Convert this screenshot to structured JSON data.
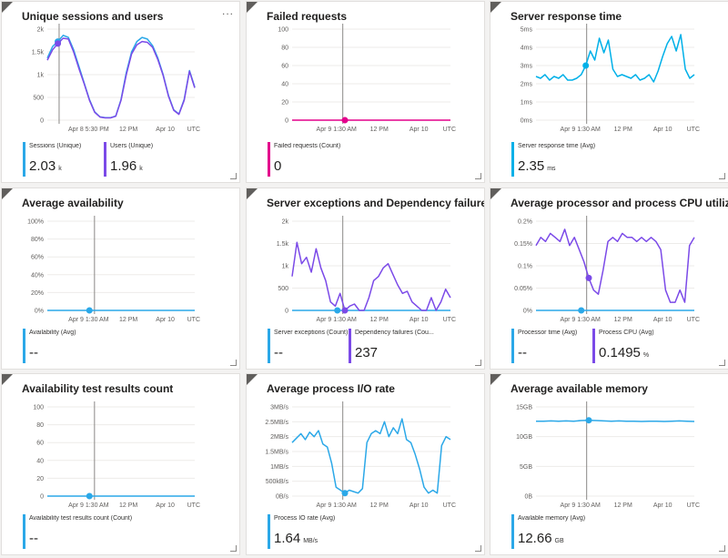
{
  "tiles": [
    {
      "id": "sessions",
      "title": "Unique sessions and users",
      "more": "...",
      "chart_data": {
        "type": "line",
        "ylabels": [
          "2k",
          "1.5k",
          "1k",
          "500",
          "0"
        ],
        "xlabels": [
          "Apr 8 5:30 PM",
          "12 PM",
          "Apr 10",
          "UTC"
        ],
        "ylim": [
          0,
          2200
        ],
        "cursor_x": 0.08,
        "series": [
          {
            "name": "Sessions (Unique)",
            "color": "#2ba8e8",
            "values": [
              1500,
              1780,
              1900,
              2050,
              2000,
              1700,
              1300,
              900,
              500,
              200,
              80,
              60,
              60,
              100,
              500,
              1150,
              1650,
              1900,
              2000,
              1960,
              1800,
              1500,
              1100,
              600,
              250,
              150,
              500,
              1200,
              800
            ]
          },
          {
            "name": "Users (Unique)",
            "color": "#7b4ae8",
            "values": [
              1450,
              1700,
              1850,
              1980,
              1960,
              1650,
              1250,
              880,
              480,
              190,
              75,
              55,
              55,
              95,
              480,
              1100,
              1600,
              1820,
              1900,
              1880,
              1760,
              1460,
              1080,
              580,
              240,
              140,
              480,
              1180,
              780
            ]
          }
        ]
      },
      "legend": [
        {
          "label": "Sessions (Unique)",
          "value": "2.03",
          "unit": "k",
          "color": "#2ba8e8"
        },
        {
          "label": "Users (Unique)",
          "value": "1.96",
          "unit": "k",
          "color": "#7b4ae8"
        }
      ]
    },
    {
      "id": "failed",
      "title": "Failed requests",
      "chart_data": {
        "type": "line",
        "ylabels": [
          "100",
          "80",
          "60",
          "40",
          "20",
          "0"
        ],
        "xlabels": [
          "Apr 9 1:30 AM",
          "12 PM",
          "Apr 10",
          "UTC"
        ],
        "ylim": [
          0,
          100
        ],
        "cursor_x": 0.32,
        "series": [
          {
            "name": "Failed requests (Count)",
            "color": "#e3008c",
            "values": [
              0,
              0,
              0,
              0,
              0,
              0,
              0,
              0,
              0,
              0
            ]
          }
        ]
      },
      "legend": [
        {
          "label": "Failed requests (Count)",
          "value": "0",
          "unit": "",
          "color": "#e3008c"
        }
      ]
    },
    {
      "id": "response",
      "title": "Server response time",
      "chart_data": {
        "type": "line",
        "ylabels": [
          "5ms",
          "4ms",
          "3ms",
          "2ms",
          "1ms",
          "0ms"
        ],
        "xlabels": [
          "Apr 9 1:30 AM",
          "12 PM",
          "Apr 10",
          "UTC"
        ],
        "ylim": [
          0,
          5
        ],
        "cursor_x": 0.32,
        "series": [
          {
            "name": "Server response time (Avg)",
            "color": "#00b0e8",
            "values": [
              2.4,
              2.3,
              2.5,
              2.2,
              2.4,
              2.3,
              2.5,
              2.2,
              2.2,
              2.3,
              2.5,
              3.0,
              3.8,
              3.3,
              4.5,
              3.7,
              4.4,
              2.8,
              2.4,
              2.5,
              2.4,
              2.3,
              2.5,
              2.2,
              2.3,
              2.5,
              2.1,
              2.7,
              3.5,
              4.2,
              4.6,
              3.8,
              4.7,
              2.8,
              2.3,
              2.5
            ]
          }
        ]
      },
      "legend": [
        {
          "label": "Server response time (Avg)",
          "value": "2.35",
          "unit": "ms",
          "color": "#00b0e8"
        }
      ]
    },
    {
      "id": "availability",
      "title": "Average availability",
      "chart_data": {
        "type": "line",
        "ylabels": [
          "100%",
          "80%",
          "60%",
          "40%",
          "20%",
          "0%"
        ],
        "xlabels": [
          "Apr 9 1:30 AM",
          "12 PM",
          "Apr 10",
          "UTC"
        ],
        "ylim": [
          0,
          100
        ],
        "cursor_x": 0.32,
        "series": [
          {
            "name": "Availability (Avg)",
            "color": "#2ba8e8",
            "values": [
              0,
              0,
              0,
              0,
              0,
              0,
              0,
              0
            ]
          }
        ]
      },
      "legend": [
        {
          "label": "Availability (Avg)",
          "value": "--",
          "unit": "",
          "color": "#2ba8e8"
        }
      ]
    },
    {
      "id": "exceptions",
      "title": "Server exceptions and Dependency failures",
      "chart_data": {
        "type": "line",
        "ylabels": [
          "2k",
          "1.5k",
          "1k",
          "500",
          "0"
        ],
        "xlabels": [
          "Apr 9 1:30 AM",
          "12 PM",
          "Apr 10",
          "UTC"
        ],
        "ylim": [
          0,
          2100
        ],
        "cursor_x": 0.32,
        "series": [
          {
            "name": "Server exceptions (Count)",
            "color": "#2ba8e8",
            "values": [
              0,
              0,
              0,
              0,
              0,
              0,
              0,
              0
            ]
          },
          {
            "name": "Dependency failures (Count)",
            "color": "#7b4ae8",
            "values": [
              800,
              1600,
              1100,
              1250,
              900,
              1450,
              1000,
              700,
              200,
              100,
              400,
              0,
              100,
              150,
              0,
              0,
              300,
              700,
              800,
              1000,
              1100,
              850,
              600,
              400,
              450,
              200,
              100,
              0,
              0,
              300,
              0,
              200,
              500,
              300
            ]
          }
        ]
      },
      "legend": [
        {
          "label": "Server exceptions (Count)",
          "value": "--",
          "unit": "",
          "color": "#2ba8e8"
        },
        {
          "label": "Dependency failures (Cou...",
          "value": "237",
          "unit": "",
          "color": "#7b4ae8"
        }
      ]
    },
    {
      "id": "cpu",
      "title": "Average processor and process CPU utilization",
      "chart_data": {
        "type": "line",
        "ylabels": [
          "0.2%",
          "0.15%",
          "0.1%",
          "0.05%",
          "0%"
        ],
        "xlabels": [
          "Apr 9 1:30 AM",
          "12 PM",
          "Apr 10",
          "UTC"
        ],
        "ylim": [
          0,
          0.22
        ],
        "cursor_x": 0.32,
        "series": [
          {
            "name": "Processor time (Avg)",
            "color": "#2ba8e8",
            "values": [
              0,
              0,
              0,
              0,
              0,
              0,
              0,
              0
            ]
          },
          {
            "name": "Process CPU (Avg)",
            "color": "#7b4ae8",
            "values": [
              0.16,
              0.18,
              0.17,
              0.19,
              0.18,
              0.17,
              0.2,
              0.16,
              0.18,
              0.15,
              0.12,
              0.08,
              0.05,
              0.04,
              0.1,
              0.17,
              0.18,
              0.17,
              0.19,
              0.18,
              0.18,
              0.17,
              0.18,
              0.17,
              0.18,
              0.17,
              0.15,
              0.05,
              0.02,
              0.02,
              0.05,
              0.02,
              0.16,
              0.18
            ]
          }
        ]
      },
      "legend": [
        {
          "label": "Processor time (Avg)",
          "value": "--",
          "unit": "",
          "color": "#2ba8e8"
        },
        {
          "label": "Process CPU (Avg)",
          "value": "0.1495",
          "unit": "%",
          "color": "#7b4ae8"
        }
      ]
    },
    {
      "id": "availtest",
      "title": "Availability test results count",
      "chart_data": {
        "type": "line",
        "ylabels": [
          "100",
          "80",
          "60",
          "40",
          "20",
          "0"
        ],
        "xlabels": [
          "Apr 9 1:30 AM",
          "12 PM",
          "Apr 10",
          "UTC"
        ],
        "ylim": [
          0,
          100
        ],
        "cursor_x": 0.32,
        "series": [
          {
            "name": "Availability test results count (Count)",
            "color": "#2ba8e8",
            "values": [
              0,
              0,
              0,
              0,
              0,
              0,
              0,
              0
            ]
          }
        ]
      },
      "legend": [
        {
          "label": "Availability test results count (Count)",
          "value": "--",
          "unit": "",
          "color": "#2ba8e8"
        }
      ]
    },
    {
      "id": "io",
      "title": "Average process I/O rate",
      "chart_data": {
        "type": "line",
        "ylabels": [
          "3MB/s",
          "2.5MB/s",
          "2MB/s",
          "1.5MB/s",
          "1MB/s",
          "500kB/s",
          "0B/s"
        ],
        "xlabels": [
          "Apr 9 1:30 AM",
          "12 PM",
          "Apr 10",
          "UTC"
        ],
        "ylim": [
          0,
          3000
        ],
        "cursor_x": 0.32,
        "series": [
          {
            "name": "Process IO rate (Avg)",
            "color": "#2ba8e8",
            "values": [
              1800,
              1950,
              2100,
              1900,
              2150,
              2000,
              2200,
              1750,
              1650,
              1100,
              300,
              200,
              100,
              200,
              150,
              100,
              250,
              1800,
              2100,
              2200,
              2100,
              2500,
              2000,
              2300,
              2100,
              2600,
              1900,
              1800,
              1400,
              900,
              300,
              100,
              200,
              100,
              1700,
              2000,
              1900
            ]
          }
        ]
      },
      "legend": [
        {
          "label": "Process IO rate (Avg)",
          "value": "1.64",
          "unit": "MB/s",
          "color": "#2ba8e8"
        }
      ]
    },
    {
      "id": "memory",
      "title": "Average available memory",
      "chart_data": {
        "type": "line",
        "ylabels": [
          "15GB",
          "10GB",
          "5GB",
          "0B"
        ],
        "xlabels": [
          "Apr 9 1:30 AM",
          "12 PM",
          "Apr 10",
          "UTC"
        ],
        "ylim": [
          0,
          15
        ],
        "cursor_x": 0.32,
        "series": [
          {
            "name": "Available memory (Avg)",
            "color": "#2ba8e8",
            "values": [
              12.6,
              12.6,
              12.65,
              12.6,
              12.65,
              12.6,
              12.7,
              12.75,
              12.7,
              12.65,
              12.6,
              12.65,
              12.6,
              12.6,
              12.55,
              12.6,
              12.6,
              12.55,
              12.6,
              12.65,
              12.6,
              12.55
            ]
          }
        ]
      },
      "legend": [
        {
          "label": "Available memory (Avg)",
          "value": "12.66",
          "unit": "GB",
          "color": "#2ba8e8"
        }
      ]
    }
  ]
}
